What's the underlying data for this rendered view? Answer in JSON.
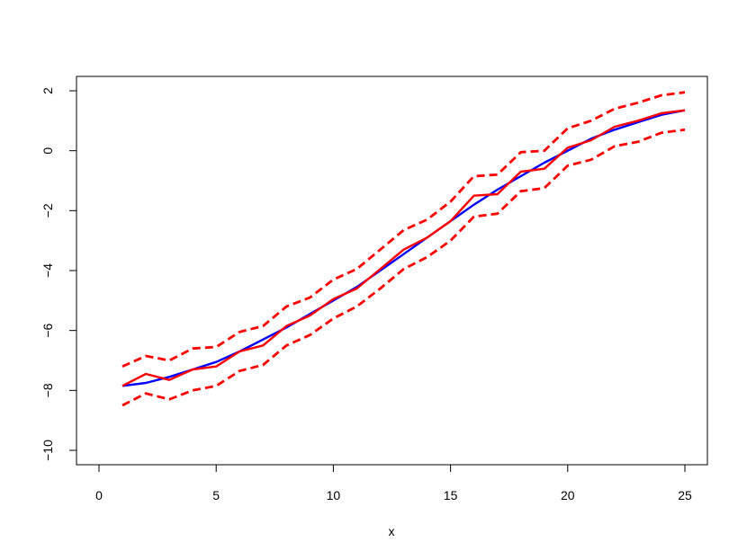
{
  "chart_data": {
    "type": "line",
    "xlabel": "x",
    "ylabel": "",
    "title": "",
    "xlim": [
      0,
      25
    ],
    "ylim": [
      -10,
      2
    ],
    "x_ticks": [
      0,
      5,
      10,
      15,
      20,
      25
    ],
    "y_ticks": [
      -10,
      -8,
      -6,
      -4,
      -2,
      0,
      2
    ],
    "grid": false,
    "legend": "none",
    "x": [
      1,
      2,
      3,
      4,
      5,
      6,
      7,
      8,
      9,
      10,
      11,
      12,
      13,
      14,
      15,
      16,
      17,
      18,
      19,
      20,
      21,
      22,
      23,
      24,
      25
    ],
    "series": [
      {
        "color": "#0000ff",
        "style": "solid",
        "values": [
          -7.85,
          -7.75,
          -7.55,
          -7.3,
          -7.05,
          -6.7,
          -6.3,
          -5.9,
          -5.45,
          -5.0,
          -4.55,
          -4.0,
          -3.45,
          -2.9,
          -2.35,
          -1.8,
          -1.3,
          -0.85,
          -0.4,
          0.0,
          0.4,
          0.7,
          0.95,
          1.2,
          1.35
        ]
      },
      {
        "color": "#ff0000",
        "style": "solid",
        "values": [
          -7.85,
          -7.45,
          -7.65,
          -7.3,
          -7.2,
          -6.7,
          -6.5,
          -5.85,
          -5.5,
          -4.95,
          -4.6,
          -3.95,
          -3.3,
          -2.9,
          -2.35,
          -1.5,
          -1.45,
          -0.7,
          -0.6,
          0.1,
          0.35,
          0.8,
          1.0,
          1.25,
          1.35
        ]
      },
      {
        "color": "#ff0000",
        "style": "dashed",
        "values": [
          -7.2,
          -6.85,
          -7.0,
          -6.6,
          -6.55,
          -6.05,
          -5.85,
          -5.2,
          -4.9,
          -4.3,
          -3.95,
          -3.3,
          -2.65,
          -2.3,
          -1.7,
          -0.85,
          -0.8,
          -0.05,
          0.0,
          0.75,
          1.0,
          1.4,
          1.6,
          1.85,
          1.95
        ]
      },
      {
        "color": "#ff0000",
        "style": "dashed",
        "values": [
          -8.5,
          -8.1,
          -8.3,
          -8.0,
          -7.85,
          -7.35,
          -7.15,
          -6.5,
          -6.15,
          -5.6,
          -5.2,
          -4.6,
          -3.95,
          -3.55,
          -3.0,
          -2.2,
          -2.1,
          -1.35,
          -1.25,
          -0.5,
          -0.3,
          0.15,
          0.3,
          0.6,
          0.7
        ]
      }
    ]
  }
}
